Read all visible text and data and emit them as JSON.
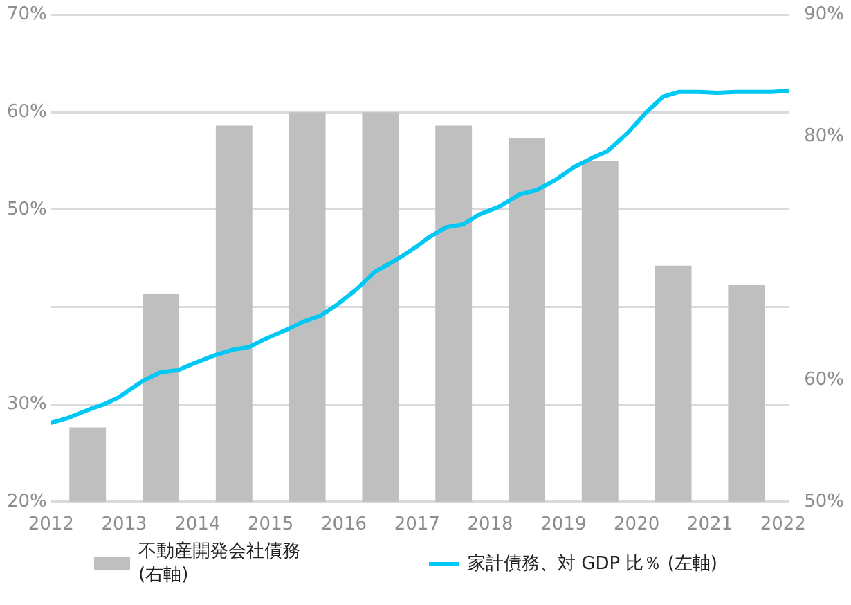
{
  "chart_data": {
    "type": "bar",
    "x": [
      2012.5,
      2013.5,
      2014.5,
      2015.5,
      2016.5,
      2017.5,
      2018.5,
      2019.5,
      2020.5,
      2021.5
    ],
    "series": [
      {
        "name": "不動産開発会社債務 (右軸)",
        "axis": "y2",
        "color": "#bfbfbf",
        "values": [
          56.1,
          67.1,
          80.9,
          82.0,
          82.0,
          80.9,
          79.9,
          78.0,
          69.4,
          67.8
        ]
      },
      {
        "name": "家計債務、対 GDP 比％ (左軸)",
        "type": "line",
        "color": "#00c8f5",
        "x": [
          2012.0,
          2012.23,
          2012.53,
          2012.72,
          2012.92,
          2013.25,
          2013.5,
          2013.73,
          2013.95,
          2014.22,
          2014.48,
          2014.71,
          2014.92,
          2015.2,
          2015.45,
          2015.68,
          2015.9,
          2016.17,
          2016.42,
          2016.68,
          2016.81,
          2017.01,
          2017.15,
          2017.4,
          2017.63,
          2017.85,
          2018.12,
          2018.41,
          2018.63,
          2018.9,
          2019.15,
          2019.39,
          2019.6,
          2019.88,
          2020.13,
          2020.36,
          2020.58,
          2020.85,
          2021.1,
          2021.36,
          2021.63,
          2021.84,
          2022.06
        ],
        "values": [
          28.1,
          28.6,
          29.5,
          30.0,
          30.7,
          32.4,
          33.3,
          33.5,
          34.2,
          35.0,
          35.6,
          35.9,
          36.7,
          37.6,
          38.5,
          39.1,
          40.2,
          41.8,
          43.6,
          44.7,
          45.3,
          46.3,
          47.1,
          48.2,
          48.5,
          49.5,
          50.3,
          51.6,
          52.0,
          53.1,
          54.4,
          55.3,
          56.0,
          57.9,
          60.0,
          61.6,
          62.1,
          62.1,
          62.0,
          62.1,
          62.1,
          62.1,
          62.2
        ]
      }
    ],
    "xlim": [
      2012,
      2022.08
    ],
    "xticks": [
      2012,
      2013,
      2014,
      2015,
      2016,
      2017,
      2018,
      2019,
      2020,
      2021,
      2022
    ],
    "ylim": [
      20,
      70
    ],
    "yticks": [
      {
        "value": 20,
        "label": "20%"
      },
      {
        "value": 30,
        "label": "30%"
      },
      {
        "value": 40,
        "label": null
      },
      {
        "value": 50,
        "label": "50%"
      },
      {
        "value": 60,
        "label": "60%"
      },
      {
        "value": 70,
        "label": "70%"
      }
    ],
    "y2lim": [
      50,
      90
    ],
    "y2ticks": [
      {
        "value": 50,
        "label": "50%"
      },
      {
        "value": 60,
        "label": "60%"
      },
      {
        "value": 80,
        "label": "80%"
      },
      {
        "value": 90,
        "label": "90%"
      }
    ],
    "grid": "y",
    "legend": "bottom",
    "marker": "none",
    "line_style": "solid"
  }
}
